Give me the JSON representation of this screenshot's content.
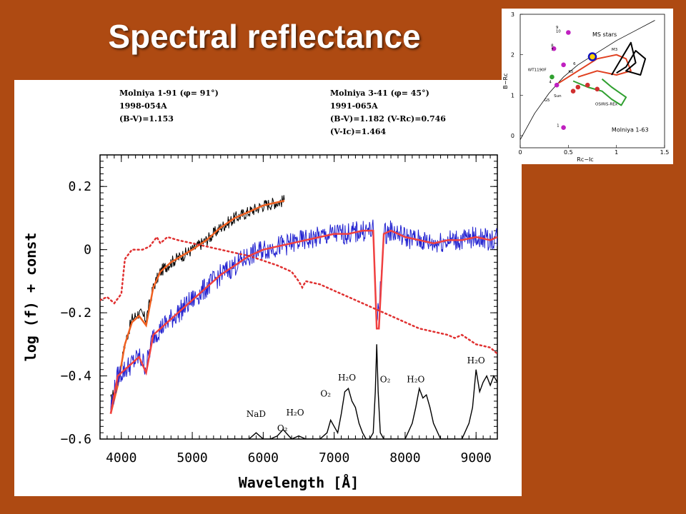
{
  "slide_title": "Spectral reflectance",
  "header_left": [
    "Molniya 1-91 (φ= 91°)",
    "1998-054A",
    "(B-V)=1.153"
  ],
  "header_right": [
    "Molniya 3-41 (φ= 45°)",
    "1991-065A",
    "(B-V)=1.182   (V-Rc)=0.746",
    "(V-Ic)=1.464"
  ],
  "chart_data": [
    {
      "type": "line",
      "xlabel": "Wavelength [Å]",
      "ylabel": "log (f) + const",
      "xlim": [
        3700,
        9300
      ],
      "ylim": [
        -0.6,
        0.3
      ],
      "xticks": [
        4000,
        5000,
        6000,
        7000,
        8000,
        9000
      ],
      "yticks": [
        -0.6,
        -0.4,
        -0.2,
        0,
        0.2
      ],
      "xtick_labels": [
        "4000",
        "5000",
        "6000",
        "7000",
        "8000",
        "9000"
      ],
      "ytick_labels": [
        "−0.6",
        "−0.4",
        "−0.2",
        "0",
        "0.2"
      ],
      "grid": false,
      "series": [
        {
          "color": "#000000",
          "style": "noisy",
          "noise": 0.02,
          "x": [
            3850,
            3950,
            4050,
            4150,
            4250,
            4350,
            4450,
            4550,
            4700,
            4850,
            5000,
            5200,
            5400,
            5600,
            5800,
            6000,
            6200,
            6300
          ],
          "y": [
            -0.48,
            -0.42,
            -0.3,
            -0.22,
            -0.2,
            -0.22,
            -0.12,
            -0.07,
            -0.04,
            -0.02,
            0.0,
            0.03,
            0.07,
            0.1,
            0.12,
            0.14,
            0.15,
            0.155
          ]
        },
        {
          "color": "#f06020",
          "style": "smooth",
          "x": [
            3850,
            3950,
            4050,
            4150,
            4250,
            4350,
            4450,
            4550,
            4700,
            4850,
            5000,
            5200,
            5400,
            5600,
            5800,
            6000,
            6200,
            6300
          ],
          "y": [
            -0.52,
            -0.43,
            -0.3,
            -0.23,
            -0.21,
            -0.24,
            -0.12,
            -0.07,
            -0.04,
            -0.02,
            0.0,
            0.03,
            0.07,
            0.1,
            0.12,
            0.14,
            0.15,
            0.155
          ]
        },
        {
          "color": "#2020d0",
          "style": "noisy",
          "noise": 0.035,
          "x": [
            3850,
            3950,
            4050,
            4150,
            4250,
            4350,
            4450,
            4600,
            4800,
            5000,
            5200,
            5400,
            5600,
            5800,
            6000,
            6200,
            6400,
            6600,
            6800,
            7000,
            7200,
            7400,
            7550,
            7600,
            7630,
            7700,
            7800,
            8000,
            8200,
            8400,
            8600,
            8800,
            9000,
            9200,
            9300
          ],
          "y": [
            -0.5,
            -0.4,
            -0.38,
            -0.36,
            -0.34,
            -0.37,
            -0.27,
            -0.24,
            -0.2,
            -0.16,
            -0.12,
            -0.08,
            -0.05,
            -0.02,
            0.0,
            0.01,
            0.02,
            0.03,
            0.04,
            0.05,
            0.05,
            0.06,
            0.06,
            -0.2,
            -0.2,
            0.05,
            0.06,
            0.04,
            0.03,
            0.02,
            0.03,
            0.03,
            0.04,
            0.03,
            0.04
          ]
        },
        {
          "color": "#f04040",
          "style": "smooth",
          "x": [
            3850,
            3950,
            4050,
            4150,
            4250,
            4350,
            4450,
            4600,
            4800,
            5000,
            5200,
            5400,
            5600,
            5800,
            6000,
            6200,
            6400,
            6600,
            6800,
            7000,
            7200,
            7400,
            7550,
            7600,
            7630,
            7700,
            7800,
            8000,
            8200,
            8400,
            8600,
            8800,
            9000,
            9200,
            9300
          ],
          "y": [
            -0.52,
            -0.4,
            -0.38,
            -0.36,
            -0.34,
            -0.39,
            -0.27,
            -0.24,
            -0.2,
            -0.16,
            -0.12,
            -0.08,
            -0.05,
            -0.02,
            0.0,
            0.01,
            0.02,
            0.03,
            0.04,
            0.05,
            0.05,
            0.06,
            0.06,
            -0.25,
            -0.25,
            0.05,
            0.06,
            0.04,
            0.03,
            0.02,
            0.03,
            0.03,
            0.04,
            0.03,
            0.04
          ]
        },
        {
          "color": "#e03030",
          "style": "dotted",
          "x": [
            3700,
            3800,
            3900,
            4000,
            4050,
            4150,
            4300,
            4400,
            4500,
            4550,
            4650,
            4800,
            5000,
            5200,
            5400,
            5600,
            5800,
            6000,
            6200,
            6400,
            6500,
            6550,
            6600,
            6800,
            7000,
            7200,
            7400,
            7600,
            7800,
            8000,
            8200,
            8400,
            8600,
            8700,
            8800,
            9000,
            9200,
            9300
          ],
          "y": [
            -0.16,
            -0.15,
            -0.17,
            -0.14,
            -0.03,
            0.0,
            0.0,
            0.01,
            0.04,
            0.02,
            0.04,
            0.03,
            0.02,
            0.01,
            0.0,
            -0.01,
            -0.02,
            -0.035,
            -0.05,
            -0.07,
            -0.1,
            -0.12,
            -0.1,
            -0.11,
            -0.13,
            -0.15,
            -0.17,
            -0.19,
            -0.21,
            -0.23,
            -0.25,
            -0.26,
            -0.27,
            -0.28,
            -0.27,
            -0.3,
            -0.31,
            -0.33
          ]
        },
        {
          "color": "#000000",
          "style": "line",
          "x": [
            5500,
            5800,
            5900,
            6000,
            6100,
            6200,
            6280,
            6400,
            6500,
            6600,
            6800,
            6900,
            6950,
            7000,
            7050,
            7100,
            7150,
            7200,
            7250,
            7300,
            7350,
            7400,
            7450,
            7500,
            7550,
            7580,
            7600,
            7620,
            7650,
            7700,
            7750,
            7800,
            7900,
            8000,
            8100,
            8150,
            8200,
            8250,
            8300,
            8350,
            8400,
            8500,
            8600,
            8700,
            8800,
            8900,
            8950,
            9000,
            9050,
            9100,
            9150,
            9200,
            9250,
            9300
          ],
          "y": [
            -0.6,
            -0.6,
            -0.58,
            -0.6,
            -0.6,
            -0.59,
            -0.57,
            -0.6,
            -0.59,
            -0.6,
            -0.6,
            -0.58,
            -0.54,
            -0.56,
            -0.58,
            -0.52,
            -0.45,
            -0.44,
            -0.48,
            -0.5,
            -0.55,
            -0.58,
            -0.6,
            -0.6,
            -0.58,
            -0.45,
            -0.3,
            -0.45,
            -0.58,
            -0.6,
            -0.6,
            -0.6,
            -0.6,
            -0.6,
            -0.55,
            -0.5,
            -0.44,
            -0.47,
            -0.46,
            -0.5,
            -0.55,
            -0.6,
            -0.6,
            -0.6,
            -0.6,
            -0.55,
            -0.5,
            -0.38,
            -0.45,
            -0.42,
            -0.4,
            -0.43,
            -0.4,
            -0.42
          ]
        }
      ],
      "annotations": [
        {
          "text": "NaD",
          "x": 5900,
          "y": -0.53
        },
        {
          "text": "O₂",
          "x": 6270,
          "y": -0.575
        },
        {
          "text": "H₂O",
          "x": 6450,
          "y": -0.525
        },
        {
          "text": "O₂",
          "x": 6880,
          "y": -0.465
        },
        {
          "text": "H₂O",
          "x": 7180,
          "y": -0.415
        },
        {
          "text": "O₂",
          "x": 7720,
          "y": -0.42
        },
        {
          "text": "H₂O",
          "x": 8150,
          "y": -0.42
        },
        {
          "text": "H₂O",
          "x": 9000,
          "y": -0.36
        }
      ]
    },
    {
      "type": "scatter",
      "xlabel": "Rc−Ic",
      "ylabel": "B−Rc",
      "xlim": [
        0,
        1.5
      ],
      "ylim": [
        -0.3,
        3
      ],
      "xticks": [
        0,
        0.5,
        1,
        1.5
      ],
      "yticks": [
        0,
        1,
        2,
        3
      ],
      "xtick_labels": [
        "0",
        "0.5",
        "1",
        "1.5"
      ],
      "ytick_labels": [
        "0",
        "1",
        "2",
        "3"
      ],
      "labels": [
        "MS stars",
        "M3",
        "WT1190F",
        "K5",
        "G5",
        "Sun",
        "OSIRIS-REx",
        "Molniya 1-63",
        "9",
        "10",
        "8",
        "7",
        "6",
        "4",
        "1"
      ],
      "series": [
        {
          "color": "#000000",
          "style": "line",
          "x": [
            0.0,
            0.15,
            0.3,
            0.45,
            0.6,
            0.8,
            1.0,
            1.2,
            1.4
          ],
          "y": [
            -0.1,
            0.55,
            1.05,
            1.45,
            1.75,
            2.05,
            2.35,
            2.6,
            2.85
          ]
        },
        {
          "color": "#e04020",
          "style": "line",
          "x": [
            0.4,
            0.6,
            0.8,
            1.0,
            1.1,
            1.15,
            1.0,
            0.8,
            0.6
          ],
          "y": [
            1.3,
            1.6,
            1.9,
            2.0,
            1.9,
            1.6,
            1.5,
            1.6,
            1.45
          ]
        },
        {
          "color": "#30a030",
          "style": "line",
          "x": [
            0.55,
            0.7,
            0.85,
            0.95,
            1.05,
            1.1,
            0.95,
            0.85
          ],
          "y": [
            1.35,
            1.2,
            1.1,
            0.9,
            0.75,
            0.95,
            1.2,
            1.4
          ]
        },
        {
          "color": "#000000",
          "style": "line",
          "x": [
            0.95,
            1.05,
            1.15,
            1.2,
            1.1,
            1.25,
            1.3,
            1.2,
            1.1,
            1.0
          ],
          "y": [
            1.5,
            1.9,
            2.3,
            1.8,
            1.6,
            1.5,
            1.9,
            2.1,
            1.7,
            1.55
          ]
        }
      ],
      "points": [
        {
          "x": 0.5,
          "y": 2.55,
          "color": "#c020c0"
        },
        {
          "x": 0.35,
          "y": 2.15,
          "color": "#c020c0"
        },
        {
          "x": 0.45,
          "y": 1.75,
          "color": "#c020c0"
        },
        {
          "x": 0.38,
          "y": 1.25,
          "color": "#c020c0"
        },
        {
          "x": 0.45,
          "y": 0.2,
          "color": "#c020c0"
        },
        {
          "x": 0.33,
          "y": 1.45,
          "color": "#30a030"
        },
        {
          "x": 0.75,
          "y": 1.95,
          "color": "#1010c0"
        },
        {
          "x": 0.6,
          "y": 1.2,
          "color": "#d03030"
        },
        {
          "x": 0.7,
          "y": 1.25,
          "color": "#d03030"
        },
        {
          "x": 0.8,
          "y": 1.15,
          "color": "#d03030"
        },
        {
          "x": 0.55,
          "y": 1.1,
          "color": "#d03030"
        }
      ]
    }
  ]
}
